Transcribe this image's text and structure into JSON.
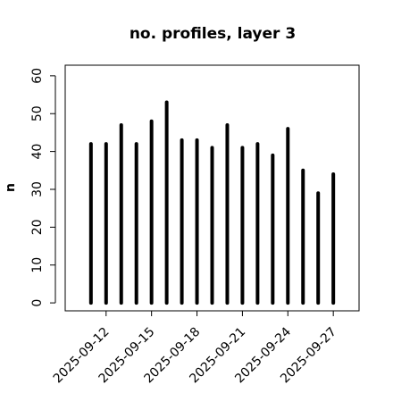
{
  "chart_data": {
    "type": "spike",
    "title": "no. profiles, layer 3",
    "y_label": "n",
    "x": [
      "2025-09-11",
      "2025-09-12",
      "2025-09-13",
      "2025-09-14",
      "2025-09-15",
      "2025-09-16",
      "2025-09-17",
      "2025-09-18",
      "2025-09-19",
      "2025-09-20",
      "2025-09-21",
      "2025-09-22",
      "2025-09-23",
      "2025-09-24",
      "2025-09-25",
      "2025-09-26",
      "2025-09-27"
    ],
    "values": [
      42,
      42,
      47,
      42,
      48,
      53,
      43,
      43,
      41,
      47,
      41,
      42,
      39,
      46,
      35,
      29,
      34
    ],
    "color": "#000000",
    "ylim": [
      -2.1,
      62.8
    ],
    "yticks": [
      0,
      10,
      20,
      30,
      40,
      50,
      60
    ],
    "xticks": [
      "2025-09-12",
      "2025-09-15",
      "2025-09-18",
      "2025-09-21",
      "2025-09-24",
      "2025-09-27"
    ],
    "highlight_tick": "2025-09-18",
    "highlight_color": "#228b22"
  }
}
